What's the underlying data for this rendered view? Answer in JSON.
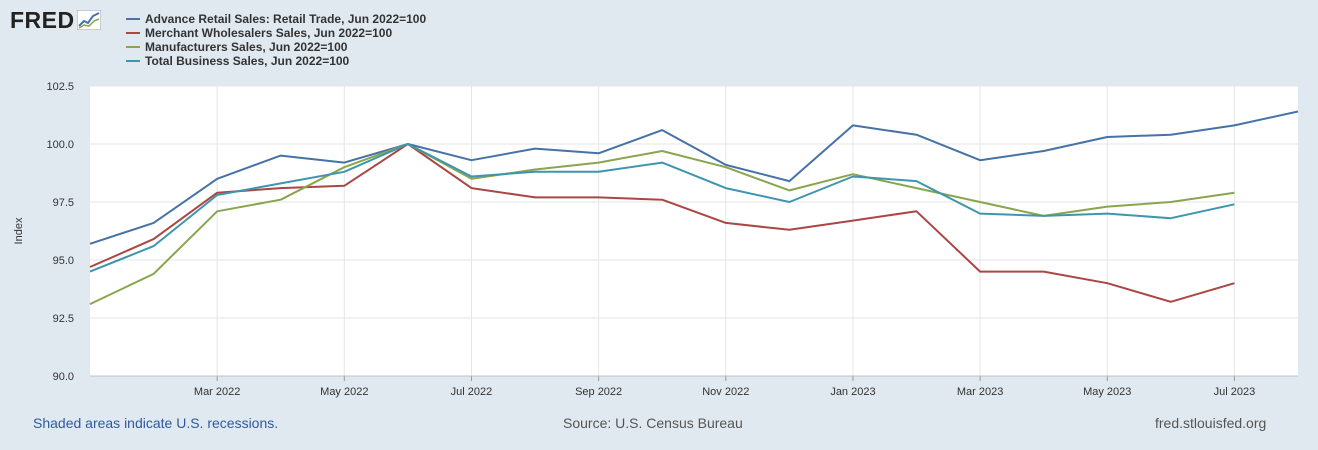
{
  "brand": {
    "name": "FRED"
  },
  "chart_data": {
    "type": "line",
    "ylabel": "Index",
    "ylim": [
      90.0,
      102.5
    ],
    "yticks": [
      "90.0",
      "92.5",
      "95.0",
      "97.5",
      "100.0",
      "102.5"
    ],
    "categories": [
      "Jan 2022",
      "Feb 2022",
      "Mar 2022",
      "Apr 2022",
      "May 2022",
      "Jun 2022",
      "Jul 2022",
      "Aug 2022",
      "Sep 2022",
      "Oct 2022",
      "Nov 2022",
      "Dec 2022",
      "Jan 2023",
      "Feb 2023",
      "Mar 2023",
      "Apr 2023",
      "May 2023",
      "Jun 2023",
      "Jul 2023",
      "Aug 2023"
    ],
    "xtick_labels": [
      "Mar 2022",
      "May 2022",
      "Jul 2022",
      "Sep 2022",
      "Nov 2022",
      "Jan 2023",
      "Mar 2023",
      "May 2023",
      "Jul 2023"
    ],
    "grid": true,
    "legend_position": "top-left",
    "series": [
      {
        "name": "Advance Retail Sales: Retail Trade, Jun 2022=100",
        "color": "#4572a7",
        "values": [
          95.7,
          96.6,
          98.5,
          99.5,
          99.2,
          100.0,
          99.3,
          99.8,
          99.6,
          100.6,
          99.1,
          98.4,
          100.8,
          100.4,
          99.3,
          99.7,
          100.3,
          100.4,
          100.8,
          101.4
        ]
      },
      {
        "name": "Merchant Wholesalers Sales, Jun 2022=100",
        "color": "#aa4643",
        "values": [
          94.7,
          95.9,
          97.9,
          98.1,
          98.2,
          100.0,
          98.1,
          97.7,
          97.7,
          97.6,
          96.6,
          96.3,
          96.7,
          97.1,
          94.5,
          94.5,
          94.0,
          93.2,
          94.0,
          null
        ]
      },
      {
        "name": "Manufacturers Sales, Jun 2022=100",
        "color": "#89a54e",
        "values": [
          93.1,
          94.4,
          97.1,
          97.6,
          99.0,
          100.0,
          98.5,
          98.9,
          99.2,
          99.7,
          99.0,
          98.0,
          98.7,
          98.1,
          97.5,
          96.9,
          97.3,
          97.5,
          97.9,
          null
        ]
      },
      {
        "name": "Total Business Sales, Jun 2022=100",
        "color": "#3d96ae",
        "values": [
          94.5,
          95.6,
          97.8,
          98.3,
          98.8,
          100.0,
          98.6,
          98.8,
          98.8,
          99.2,
          98.1,
          97.5,
          98.6,
          98.4,
          97.0,
          96.9,
          97.0,
          96.8,
          97.4,
          null
        ]
      }
    ]
  },
  "footer": {
    "note": "Shaded areas indicate U.S. recessions.",
    "source": "Source: U.S. Census Bureau",
    "link": "fred.stlouisfed.org"
  }
}
